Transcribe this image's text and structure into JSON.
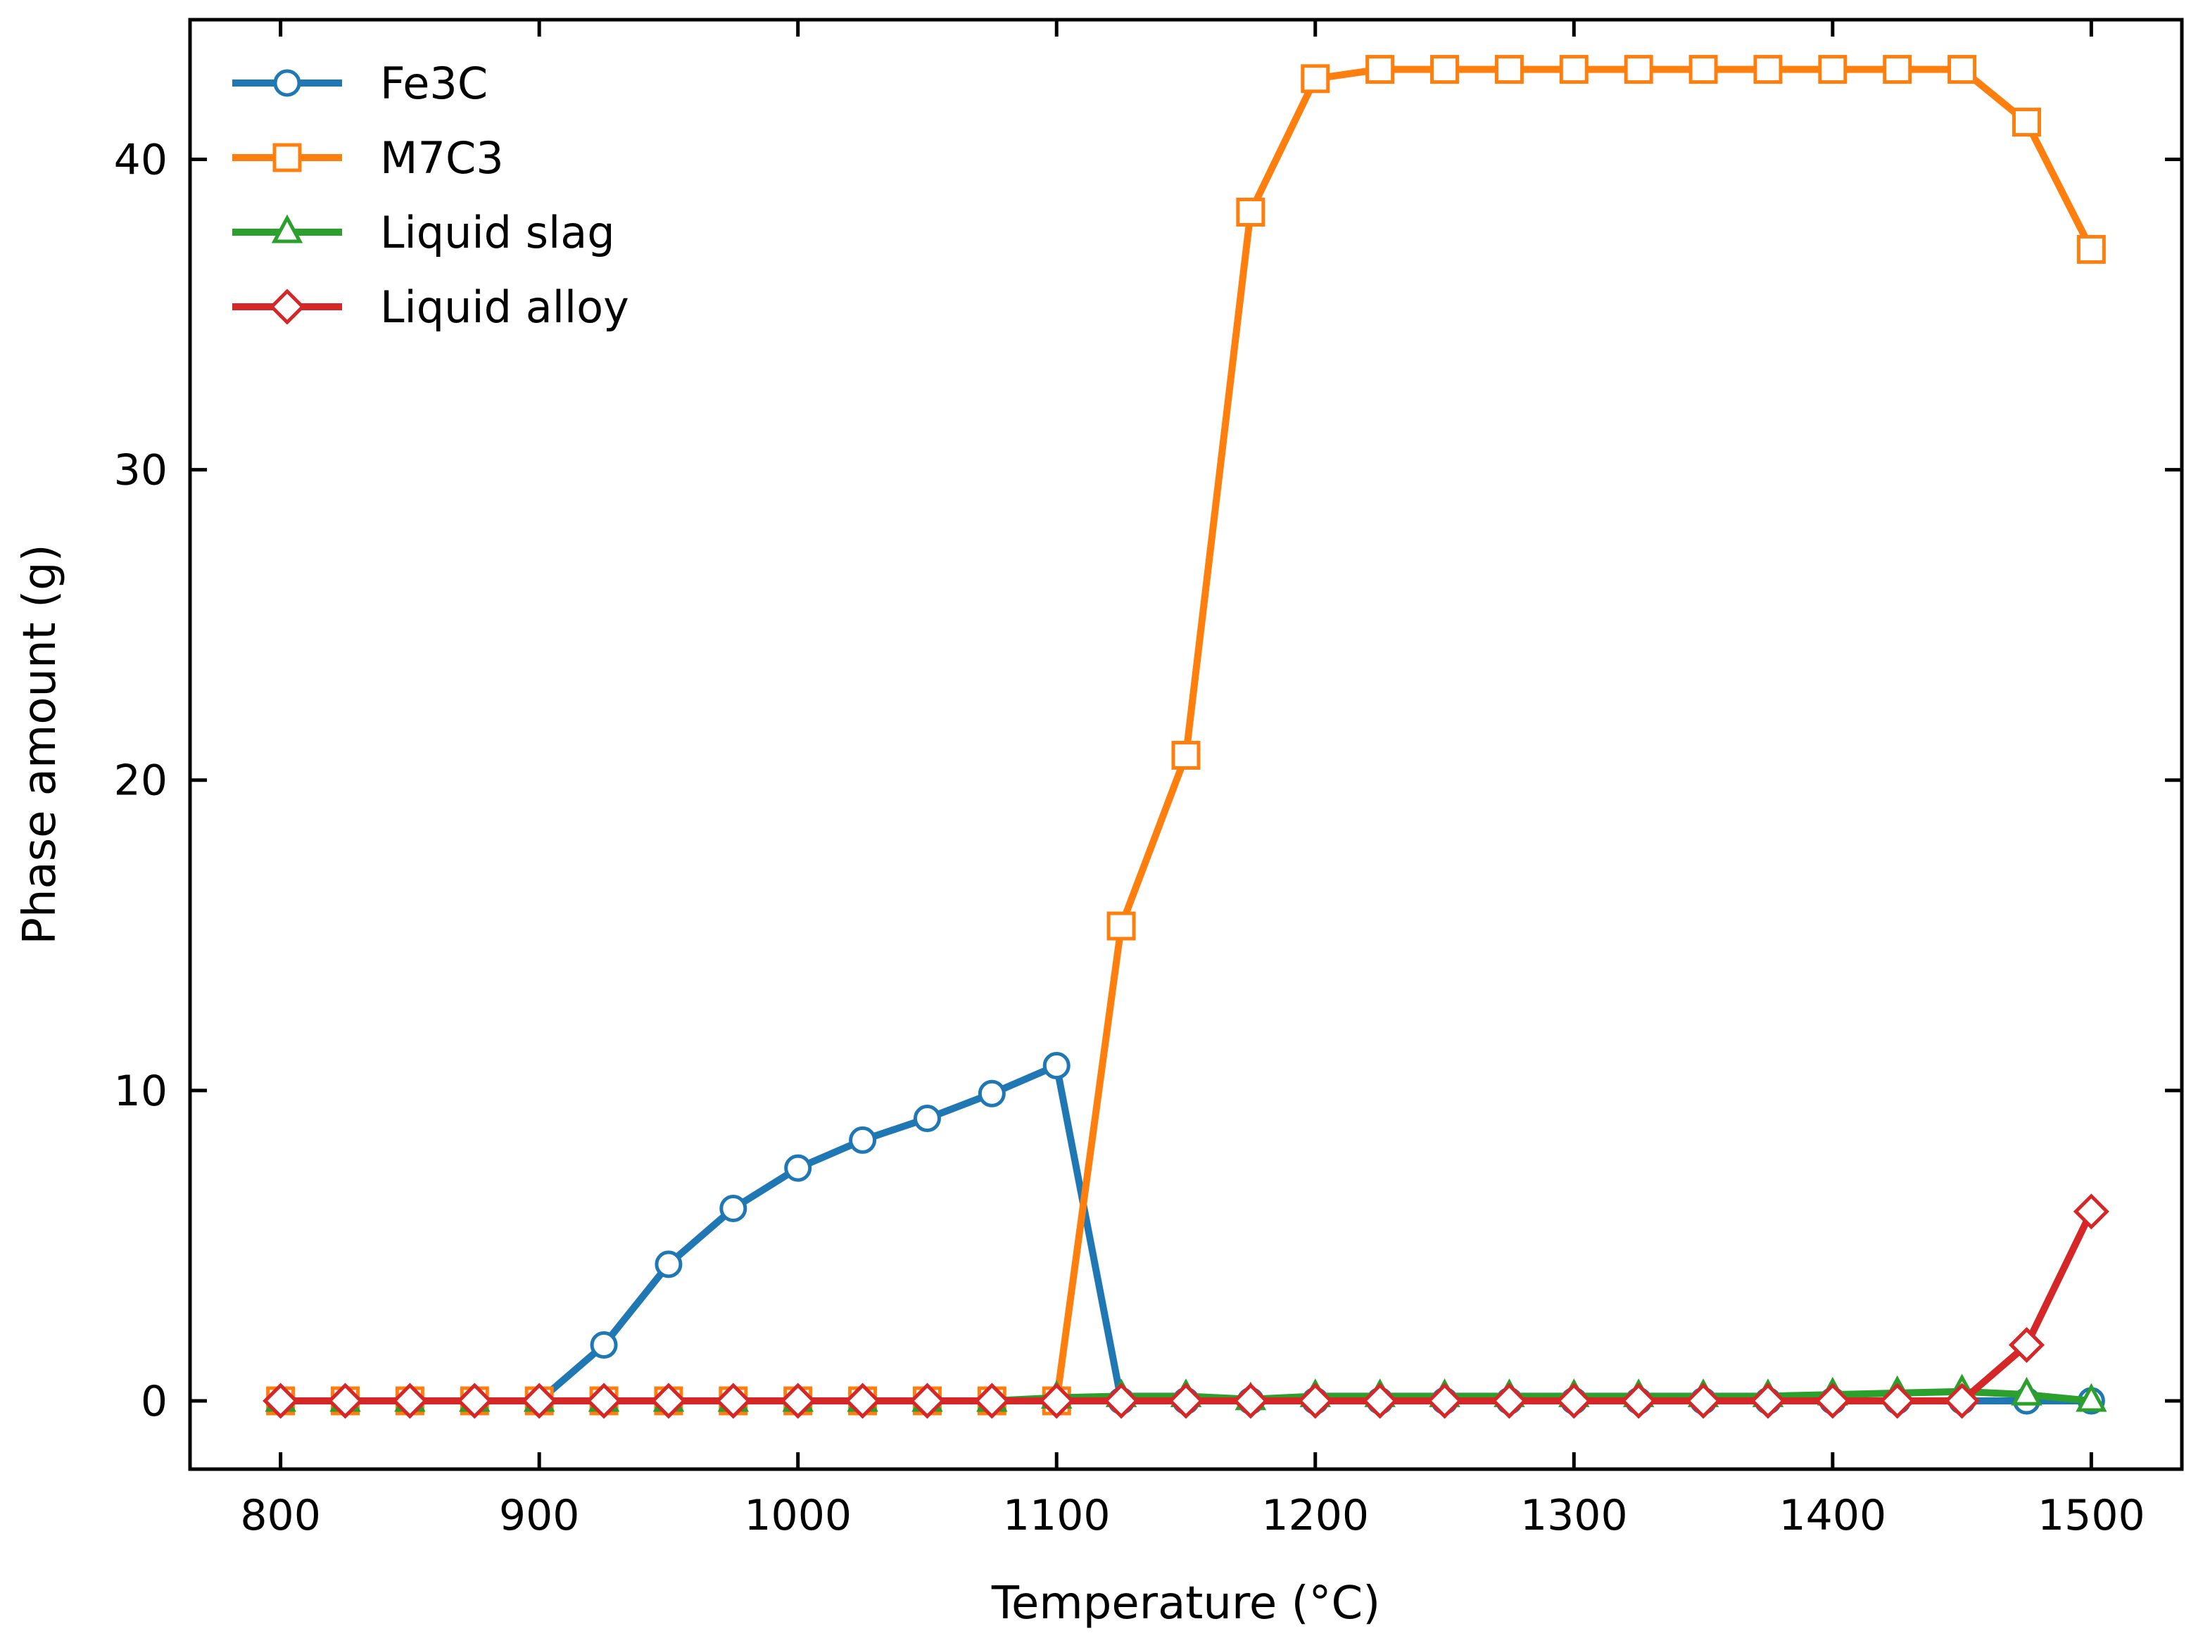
{
  "chart_data": {
    "type": "line",
    "title": "",
    "xlabel": "Temperature (°C)",
    "ylabel": "Phase amount (g)",
    "xlim": [
      765,
      1535
    ],
    "ylim": [
      -2.2,
      44.5
    ],
    "xticks": [
      800,
      900,
      1000,
      1100,
      1200,
      1300,
      1400,
      1500
    ],
    "yticks": [
      0,
      10,
      20,
      30,
      40
    ],
    "grid": false,
    "legend_position": "top-left",
    "x": [
      800,
      825,
      850,
      875,
      900,
      925,
      950,
      975,
      1000,
      1025,
      1050,
      1075,
      1100,
      1125,
      1150,
      1175,
      1200,
      1225,
      1250,
      1275,
      1300,
      1325,
      1350,
      1375,
      1400,
      1425,
      1450,
      1475,
      1500
    ],
    "series": [
      {
        "name": "Fe3C",
        "color": "#1f77b4",
        "marker": "circle",
        "values": [
          0,
          0,
          0,
          0,
          0,
          1.8,
          4.4,
          6.2,
          7.5,
          8.4,
          9.1,
          9.9,
          10.8,
          0,
          0,
          0,
          0,
          0,
          0,
          0,
          0,
          0,
          0,
          0,
          0,
          0,
          0,
          0,
          0
        ]
      },
      {
        "name": "M7C3",
        "color": "#ff7f0e",
        "marker": "square",
        "values": [
          0,
          0,
          0,
          0,
          0,
          0,
          0,
          0,
          0,
          0,
          0,
          0,
          0,
          15.3,
          20.8,
          38.3,
          42.6,
          42.9,
          42.9,
          42.9,
          42.9,
          42.9,
          42.9,
          42.9,
          42.9,
          42.9,
          42.9,
          41.2,
          37.1
        ]
      },
      {
        "name": "Liquid slag",
        "color": "#2ca02c",
        "marker": "triangle",
        "values": [
          0,
          0,
          0,
          0,
          0,
          0,
          0,
          0,
          0,
          0,
          0,
          0,
          0.1,
          0.15,
          0.15,
          0.05,
          0.15,
          0.15,
          0.15,
          0.15,
          0.15,
          0.15,
          0.15,
          0.15,
          0.2,
          0.25,
          0.3,
          0.2,
          0
        ]
      },
      {
        "name": "Liquid alloy",
        "color": "#d62728",
        "marker": "diamond",
        "values": [
          0,
          0,
          0,
          0,
          0,
          0,
          0,
          0,
          0,
          0,
          0,
          0,
          0,
          0,
          0,
          0,
          0,
          0,
          0,
          0,
          0,
          0,
          0,
          0,
          0,
          0,
          0,
          1.8,
          6.1
        ]
      }
    ]
  }
}
